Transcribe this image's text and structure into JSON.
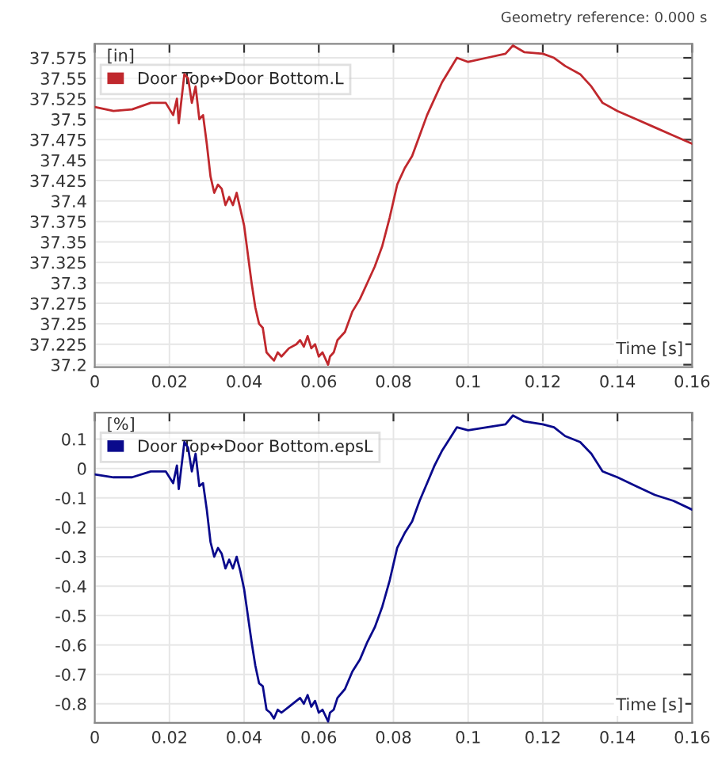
{
  "chart_data": [
    {
      "type": "line",
      "annotations": [
        "Geometry reference: 0.000 s"
      ],
      "ylabel": "[in]",
      "xlabel": "Time [s]",
      "legend": "top left",
      "grid": true,
      "x": [
        0,
        0.005,
        0.01,
        0.015,
        0.019,
        0.021,
        0.022,
        0.0225,
        0.024,
        0.025,
        0.026,
        0.027,
        0.028,
        0.029,
        0.03,
        0.031,
        0.032,
        0.033,
        0.034,
        0.035,
        0.036,
        0.037,
        0.038,
        0.039,
        0.04,
        0.042,
        0.043,
        0.044,
        0.045,
        0.046,
        0.047,
        0.048,
        0.049,
        0.05,
        0.052,
        0.054,
        0.055,
        0.056,
        0.057,
        0.058,
        0.059,
        0.06,
        0.061,
        0.0625,
        0.063,
        0.064,
        0.065,
        0.067,
        0.069,
        0.071,
        0.073,
        0.075,
        0.077,
        0.079,
        0.081,
        0.083,
        0.085,
        0.087,
        0.089,
        0.091,
        0.093,
        0.095,
        0.097,
        0.1,
        0.105,
        0.11,
        0.112,
        0.115,
        0.12,
        0.123,
        0.126,
        0.13,
        0.133,
        0.136,
        0.14,
        0.145,
        0.15,
        0.155,
        0.16
      ],
      "series": [
        {
          "name": "Door Top↔Door Bottom.L",
          "color": "#c0282d",
          "values": [
            37.515,
            37.51,
            37.512,
            37.52,
            37.52,
            37.505,
            37.525,
            37.495,
            37.555,
            37.55,
            37.52,
            37.54,
            37.5,
            37.505,
            37.47,
            37.43,
            37.41,
            37.42,
            37.415,
            37.395,
            37.405,
            37.395,
            37.41,
            37.39,
            37.37,
            37.3,
            37.27,
            37.25,
            37.245,
            37.215,
            37.21,
            37.205,
            37.215,
            37.21,
            37.22,
            37.225,
            37.23,
            37.222,
            37.235,
            37.22,
            37.225,
            37.21,
            37.215,
            37.2,
            37.21,
            37.215,
            37.23,
            37.24,
            37.265,
            37.28,
            37.3,
            37.32,
            37.345,
            37.38,
            37.42,
            37.44,
            37.455,
            37.48,
            37.505,
            37.525,
            37.545,
            37.56,
            37.575,
            37.57,
            37.575,
            37.58,
            37.59,
            37.582,
            37.58,
            37.575,
            37.565,
            37.555,
            37.54,
            37.52,
            37.51,
            37.5,
            37.49,
            37.48,
            37.47
          ]
        }
      ],
      "xlim": [
        0,
        0.16
      ],
      "xticks": [
        0,
        0.02,
        0.04,
        0.06,
        0.08,
        0.1,
        0.12,
        0.14,
        0.16
      ],
      "ylim": [
        37.197,
        37.592
      ],
      "yticks": [
        37.2,
        37.225,
        37.25,
        37.275,
        37.3,
        37.325,
        37.35,
        37.375,
        37.4,
        37.425,
        37.45,
        37.475,
        37.5,
        37.525,
        37.55,
        37.575
      ]
    },
    {
      "type": "line",
      "ylabel": "[%]",
      "xlabel": "Time [s]",
      "legend": "top left",
      "grid": true,
      "x": [
        0,
        0.005,
        0.01,
        0.015,
        0.019,
        0.021,
        0.022,
        0.0225,
        0.024,
        0.025,
        0.026,
        0.027,
        0.028,
        0.029,
        0.03,
        0.031,
        0.032,
        0.033,
        0.034,
        0.035,
        0.036,
        0.037,
        0.038,
        0.039,
        0.04,
        0.042,
        0.043,
        0.044,
        0.045,
        0.046,
        0.047,
        0.048,
        0.049,
        0.05,
        0.052,
        0.054,
        0.055,
        0.056,
        0.057,
        0.058,
        0.059,
        0.06,
        0.061,
        0.0625,
        0.063,
        0.064,
        0.065,
        0.067,
        0.069,
        0.071,
        0.073,
        0.075,
        0.077,
        0.079,
        0.081,
        0.083,
        0.085,
        0.087,
        0.089,
        0.091,
        0.093,
        0.095,
        0.097,
        0.1,
        0.105,
        0.11,
        0.112,
        0.115,
        0.12,
        0.123,
        0.126,
        0.13,
        0.133,
        0.136,
        0.14,
        0.145,
        0.15,
        0.155,
        0.16
      ],
      "series": [
        {
          "name": "Door Top↔Door Bottom.epsL",
          "color": "#0a0a8c",
          "values": [
            -0.02,
            -0.03,
            -0.03,
            -0.01,
            -0.01,
            -0.05,
            0.01,
            -0.07,
            0.09,
            0.07,
            -0.01,
            0.05,
            -0.06,
            -0.05,
            -0.14,
            -0.25,
            -0.3,
            -0.27,
            -0.29,
            -0.34,
            -0.31,
            -0.34,
            -0.3,
            -0.35,
            -0.41,
            -0.59,
            -0.67,
            -0.73,
            -0.74,
            -0.82,
            -0.83,
            -0.85,
            -0.82,
            -0.83,
            -0.81,
            -0.79,
            -0.78,
            -0.8,
            -0.77,
            -0.81,
            -0.79,
            -0.83,
            -0.82,
            -0.86,
            -0.83,
            -0.82,
            -0.78,
            -0.75,
            -0.69,
            -0.65,
            -0.59,
            -0.54,
            -0.47,
            -0.38,
            -0.27,
            -0.22,
            -0.18,
            -0.11,
            -0.05,
            0.01,
            0.06,
            0.1,
            0.14,
            0.13,
            0.14,
            0.15,
            0.18,
            0.16,
            0.15,
            0.14,
            0.11,
            0.09,
            0.05,
            -0.01,
            -0.03,
            -0.06,
            -0.09,
            -0.11,
            -0.14
          ]
        }
      ],
      "xlim": [
        0,
        0.16
      ],
      "xticks": [
        0,
        0.02,
        0.04,
        0.06,
        0.08,
        0.1,
        0.12,
        0.14,
        0.16
      ],
      "ylim": [
        -0.865,
        0.19
      ],
      "yticks": [
        -0.8,
        -0.7,
        -0.6,
        -0.5,
        -0.4,
        -0.3,
        -0.2,
        -0.1,
        0,
        0.1
      ]
    }
  ]
}
